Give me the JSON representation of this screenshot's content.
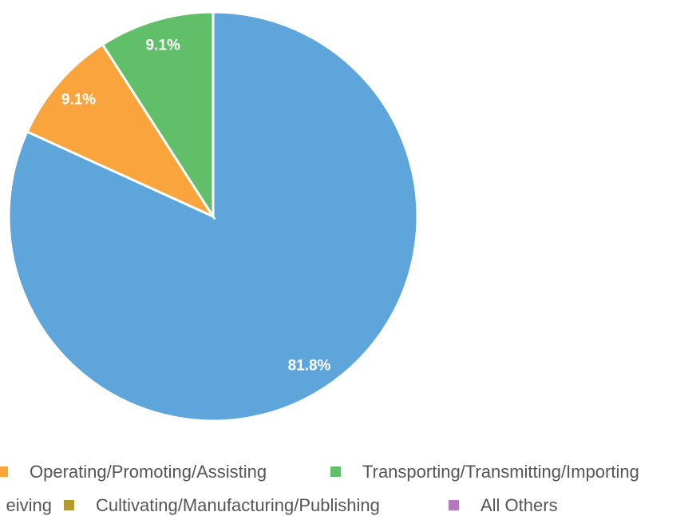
{
  "chart_data": {
    "type": "pie",
    "categories": [
      null,
      "Operating/Promoting/Assisting",
      "Transporting/Transmitting/Importing",
      "eiving",
      "Cultivating/Manufacturing/Publishing",
      "All Others"
    ],
    "values": [
      81.8,
      9.1,
      9.1,
      0,
      0,
      0
    ],
    "value_labels": [
      "81.8%",
      "9.1%",
      "9.1%",
      null,
      null,
      null
    ],
    "colors": [
      "#5ea5db",
      "#f9a43c",
      "#61bf6a",
      null,
      "#b89a32",
      "#b677c0"
    ]
  }
}
